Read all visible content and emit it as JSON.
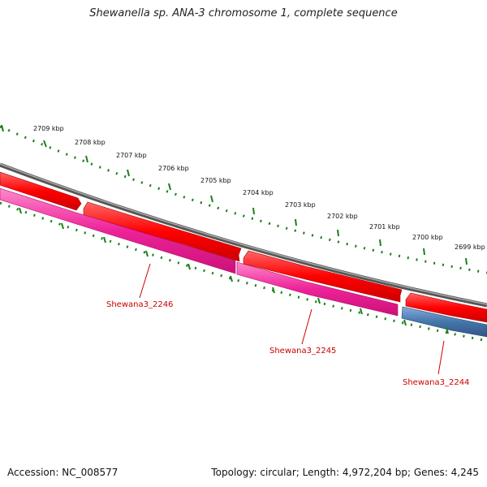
{
  "title": "Shewanella sp. ANA-3 chromosome 1, complete sequence",
  "footer": {
    "accession": "Accession: NC_008577",
    "topology": "Topology: circular; Length: 4,972,204 bp; Genes: 4,245"
  },
  "colors": {
    "backbone": "#7a7a7a",
    "forward_gene": "#ee1111",
    "reverse_gene": "#ee2288",
    "other_gene": "#4477aa",
    "tick": "#1a7f1a",
    "label": "#cc0000"
  },
  "kbp_labels": [
    "2709 kbp",
    "2708 kbp",
    "2707 kbp",
    "2706 kbp",
    "2705 kbp",
    "2704 kbp",
    "2703 kbp",
    "2702 kbp",
    "2701 kbp",
    "2700 kbp",
    "2699 kbp"
  ],
  "genes": [
    "Shewana3_2246",
    "Shewana3_2245",
    "Shewana3_2244"
  ]
}
